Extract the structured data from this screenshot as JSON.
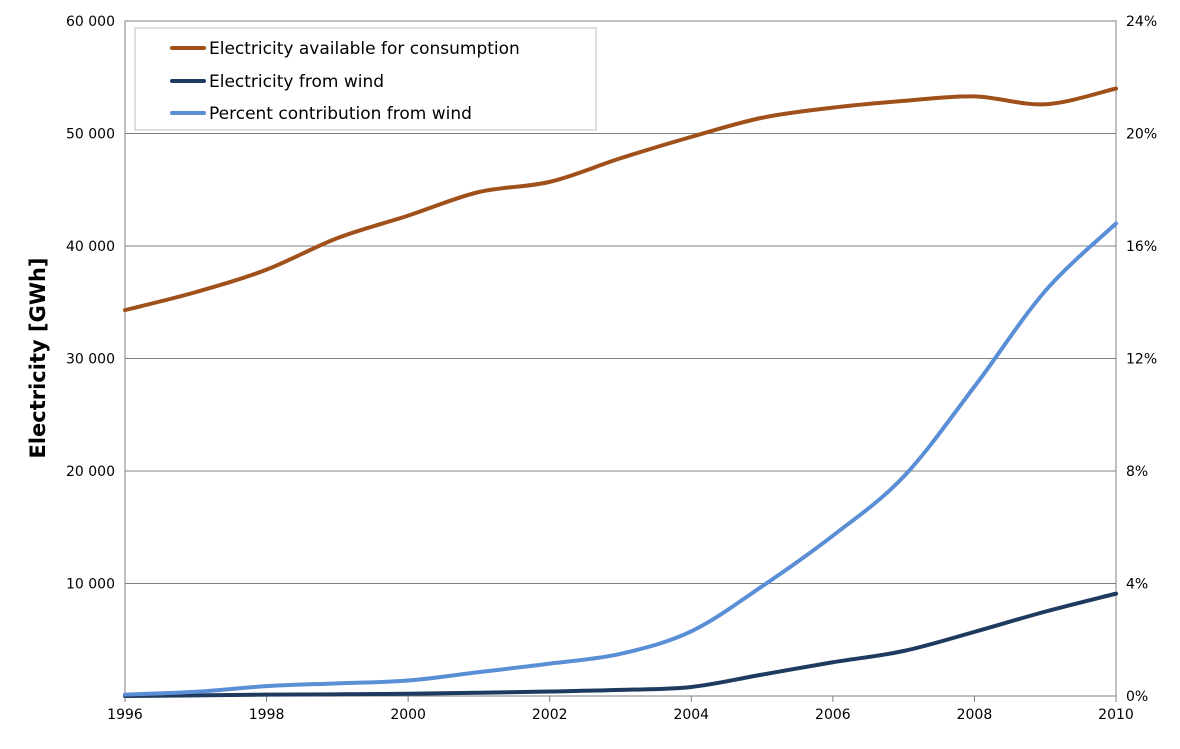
{
  "chart_data": {
    "type": "line",
    "ylabel": "Electricity [GWh]",
    "x": [
      1996,
      1997,
      1998,
      1999,
      2000,
      2001,
      2002,
      2003,
      2004,
      2005,
      2006,
      2007,
      2008,
      2009,
      2010
    ],
    "xlim": [
      1996,
      2010
    ],
    "x_ticks": [
      "1996",
      "1998",
      "2000",
      "2002",
      "2004",
      "2006",
      "2008",
      "2010"
    ],
    "ylim": [
      0,
      60000
    ],
    "y_ticks": [
      "10 000",
      "20 000",
      "30 000",
      "40 000",
      "50 000",
      "60 000"
    ],
    "y2lim": [
      0,
      24
    ],
    "y2_ticks": [
      "0%",
      "4%",
      "8%",
      "12%",
      "16%",
      "20%",
      "24%"
    ],
    "grid": "horizontal",
    "legend_position": "top-left",
    "series": [
      {
        "name": "Electricity available for consumption",
        "axis": "left",
        "color": "#a0501a",
        "values": [
          34300,
          35900,
          37900,
          40700,
          42700,
          44800,
          45700,
          47800,
          49700,
          51400,
          52300,
          52900,
          53300,
          52600,
          54000
        ]
      },
      {
        "name": "Electricity from wind",
        "axis": "left",
        "color": "#1f3a5f",
        "values": [
          0,
          60,
          120,
          150,
          200,
          290,
          400,
          540,
          800,
          1900,
          3000,
          4000,
          5700,
          7500,
          9100
        ]
      },
      {
        "name": "Percent contribution from wind",
        "axis": "right",
        "color": "#5a8fd6",
        "values": [
          0.05,
          0.15,
          0.35,
          0.45,
          0.55,
          0.85,
          1.15,
          1.5,
          2.3,
          3.9,
          5.7,
          7.8,
          11,
          14.4,
          16.8
        ]
      }
    ]
  }
}
